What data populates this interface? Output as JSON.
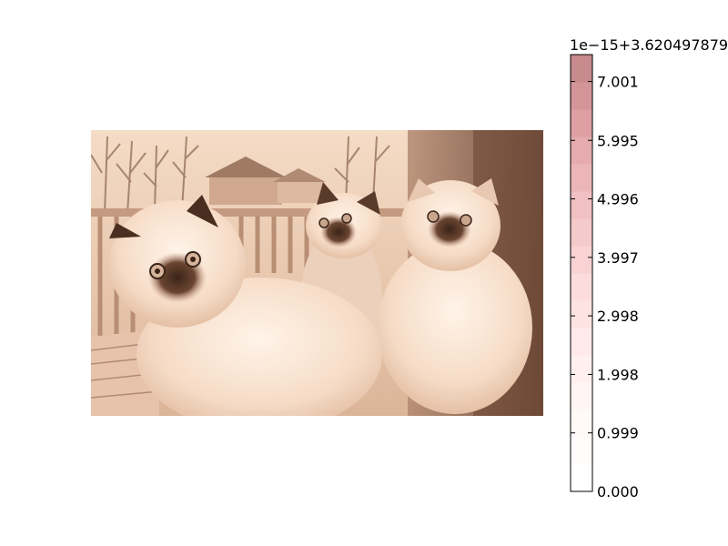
{
  "chart_data": {
    "type": "heatmap",
    "image_depicted": "three fluffy Himalayan kittens sitting on a wooden deck, outdoor trees and houses behind, rendered in a sepia/pink colormap",
    "colorbar": {
      "offset_label": "1e−15+3.620497879",
      "ticks": [
        {
          "label": "0.000",
          "value": 0.0
        },
        {
          "label": "0.999",
          "value": 0.999
        },
        {
          "label": "1.998",
          "value": 1.998
        },
        {
          "label": "2.998",
          "value": 2.998
        },
        {
          "label": "3.997",
          "value": 3.997
        },
        {
          "label": "4.996",
          "value": 4.996
        },
        {
          "label": "5.995",
          "value": 5.995
        },
        {
          "label": "7.001",
          "value": 7.001
        }
      ],
      "range": [
        0.0,
        7.46
      ],
      "colors": [
        "#ffffff",
        "#fffcfb",
        "#fff9f8",
        "#fff5f4",
        "#fff0ef",
        "#ffeae9",
        "#fee3e3",
        "#fcdcdc",
        "#f9d3d4",
        "#f5cacb",
        "#f1c0c2",
        "#ecb6b8",
        "#e5abae",
        "#dea0a3",
        "#d49598",
        "#c78a8d"
      ]
    }
  }
}
